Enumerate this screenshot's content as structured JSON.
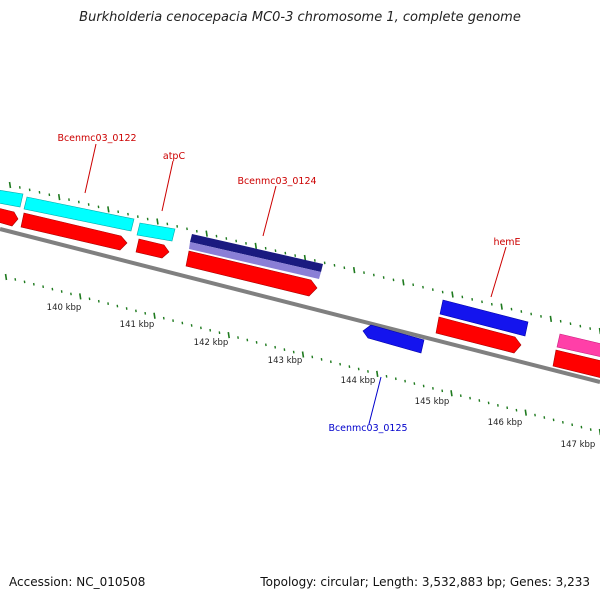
{
  "title": "Burkholderia cenocepacia MC0-3 chromosome 1, complete genome",
  "footer": {
    "accession": "Accession: NC_010508",
    "stats": "Topology: circular; Length: 3,532,883 bp; Genes: 3,233"
  },
  "colors": {
    "backbone": "#808080",
    "tick": "#1e7a1e",
    "cds_forward": "#ff0000",
    "gene_cyan": "#00ffff",
    "gene_navy": "#1a1a80",
    "gene_lavender": "#8a7fd6",
    "gene_blue": "#1414ee",
    "gene_pink": "#ff3fa8",
    "label_red": "#cc0000",
    "label_blue": "#0000cc"
  },
  "tick_labels": [
    "140 kbp",
    "141 kbp",
    "142 kbp",
    "143 kbp",
    "144 kbp",
    "145 kbp",
    "146 kbp",
    "147 kbp"
  ],
  "gene_labels": [
    {
      "text": "Bcenmc03_0122",
      "color": "#cc0000"
    },
    {
      "text": "atpC",
      "color": "#cc0000"
    },
    {
      "text": "Bcenmc03_0124",
      "color": "#cc0000"
    },
    {
      "text": "hemE",
      "color": "#cc0000"
    },
    {
      "text": "Bcenmc03_0125",
      "color": "#0000cc"
    }
  ]
}
